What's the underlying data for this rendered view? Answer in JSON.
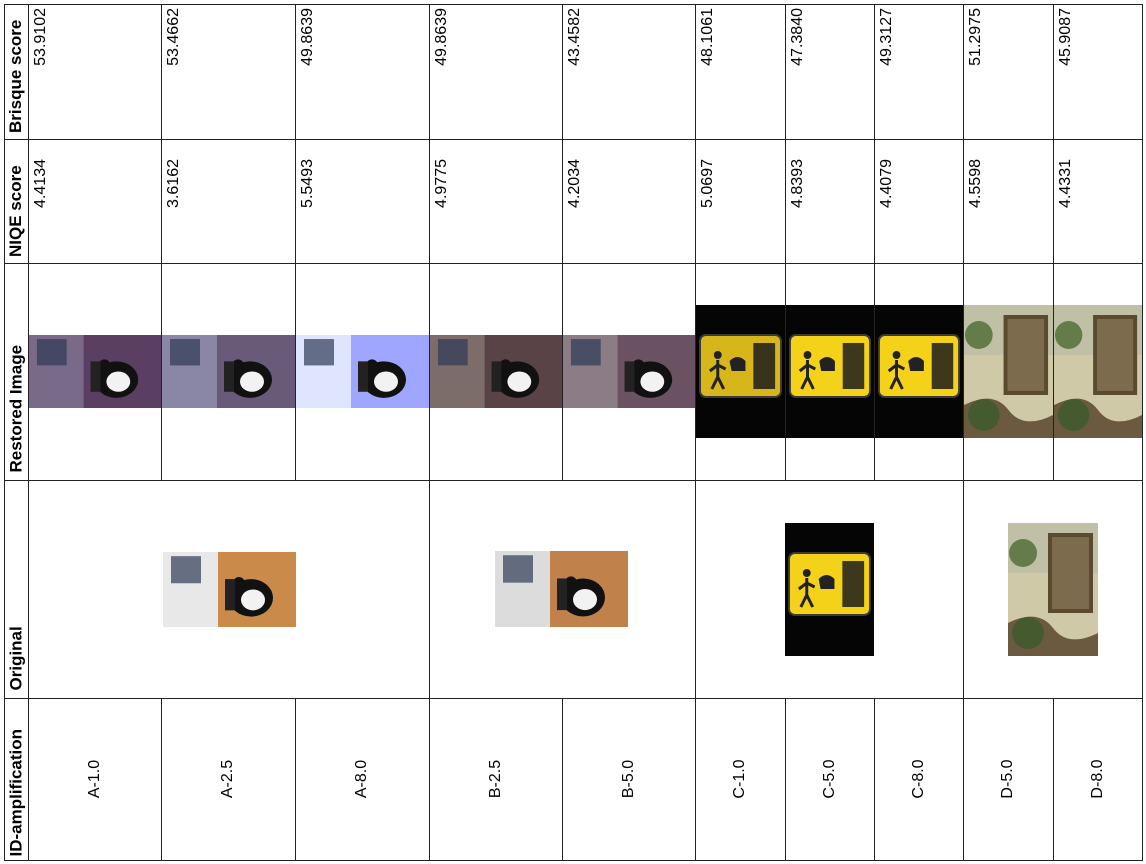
{
  "table": {
    "headers": {
      "brisque": "Brisque score",
      "niqe": "NIQE score",
      "restored": "Restored Image",
      "original": "Original",
      "id": "ID-amplification"
    },
    "columns": [
      {
        "id": "A-1.0",
        "niqe": "4.4134",
        "brisque": "53.9102"
      },
      {
        "id": "A-2.5",
        "niqe": "3.6162",
        "brisque": "53.4662"
      },
      {
        "id": "A-8.0",
        "niqe": "5.5493",
        "brisque": "49.8639"
      },
      {
        "id": "B-2.5",
        "niqe": "4.9775",
        "brisque": "49.8639"
      },
      {
        "id": "B-5.0",
        "niqe": "4.2034",
        "brisque": "43.4582"
      },
      {
        "id": "C-1.0",
        "niqe": "5.0697",
        "brisque": "48.1061"
      },
      {
        "id": "C-5.0",
        "niqe": "4.8393",
        "brisque": "47.3840"
      },
      {
        "id": "C-8.0",
        "niqe": "4.4079",
        "brisque": "49.3127"
      },
      {
        "id": "D-5.0",
        "niqe": "4.5598",
        "brisque": "51.2975"
      },
      {
        "id": "D-8.0",
        "niqe": "4.4331",
        "brisque": "45.9087"
      }
    ],
    "originals": [
      {
        "group": "A",
        "scene": "cat-icon"
      },
      {
        "group": "B",
        "scene": "cat-icon"
      },
      {
        "group": "C",
        "scene": "dog-walking-sign-icon"
      },
      {
        "group": "D",
        "scene": "garden-bench-icon"
      }
    ]
  }
}
